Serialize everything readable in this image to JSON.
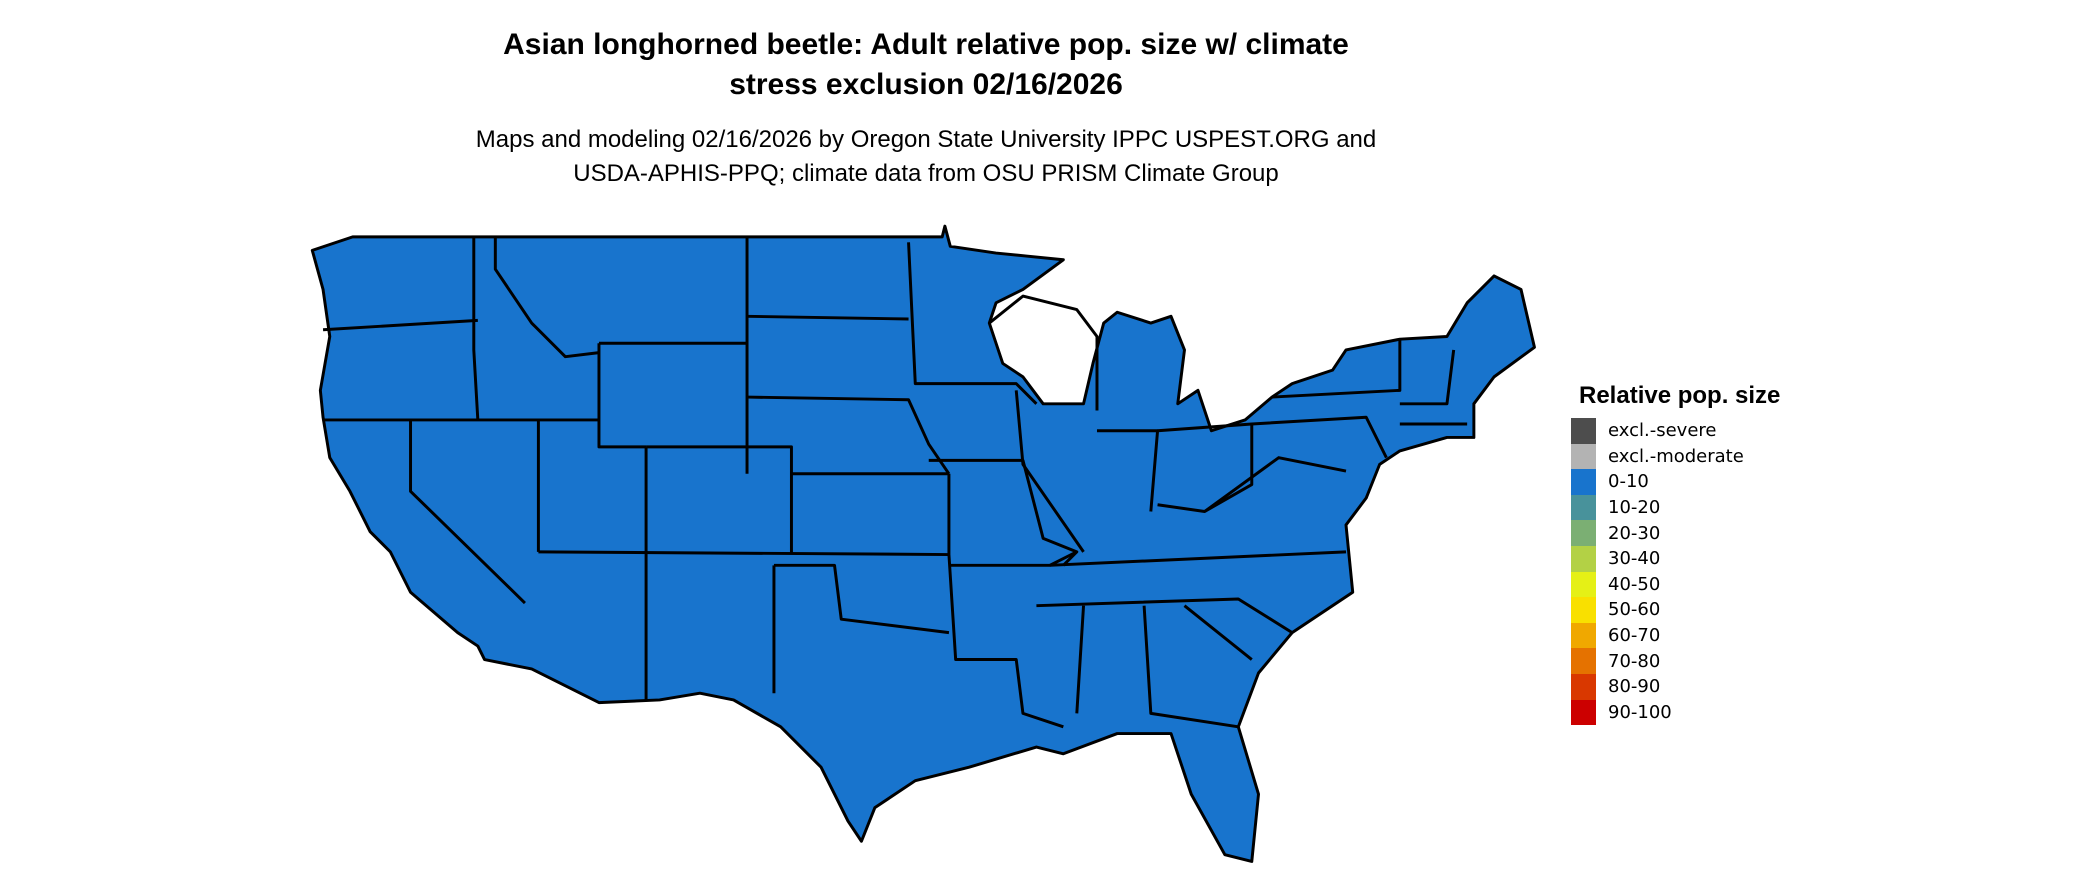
{
  "title_line1": "Asian longhorned beetle: Adult relative pop. size w/ climate",
  "title_line2": "stress exclusion 02/16/2026",
  "subtitle_line1": "Maps and modeling 02/16/2026 by Oregon State University IPPC USPEST.ORG and",
  "subtitle_line2": "USDA-APHIS-PPQ; climate data from OSU PRISM Climate Group",
  "map": {
    "region": "contiguous United States",
    "dominant_class": "0-10",
    "fill_color": "#1874CD",
    "border_color": "#000000"
  },
  "legend": {
    "title": "Relative pop. size",
    "items": [
      {
        "label": "excl.-severe",
        "color": "#4D4D4D"
      },
      {
        "label": "excl.-moderate",
        "color": "#B3B3B3"
      },
      {
        "label": "0-10",
        "color": "#1874CD"
      },
      {
        "label": "10-20",
        "color": "#48929B"
      },
      {
        "label": "20-30",
        "color": "#7BAF73"
      },
      {
        "label": "30-40",
        "color": "#B3D145"
      },
      {
        "label": "40-50",
        "color": "#E5F016"
      },
      {
        "label": "50-60",
        "color": "#F9E000"
      },
      {
        "label": "60-70",
        "color": "#F0A800"
      },
      {
        "label": "70-80",
        "color": "#E57200"
      },
      {
        "label": "80-90",
        "color": "#D93800"
      },
      {
        "label": "90-100",
        "color": "#CC0000"
      }
    ]
  }
}
